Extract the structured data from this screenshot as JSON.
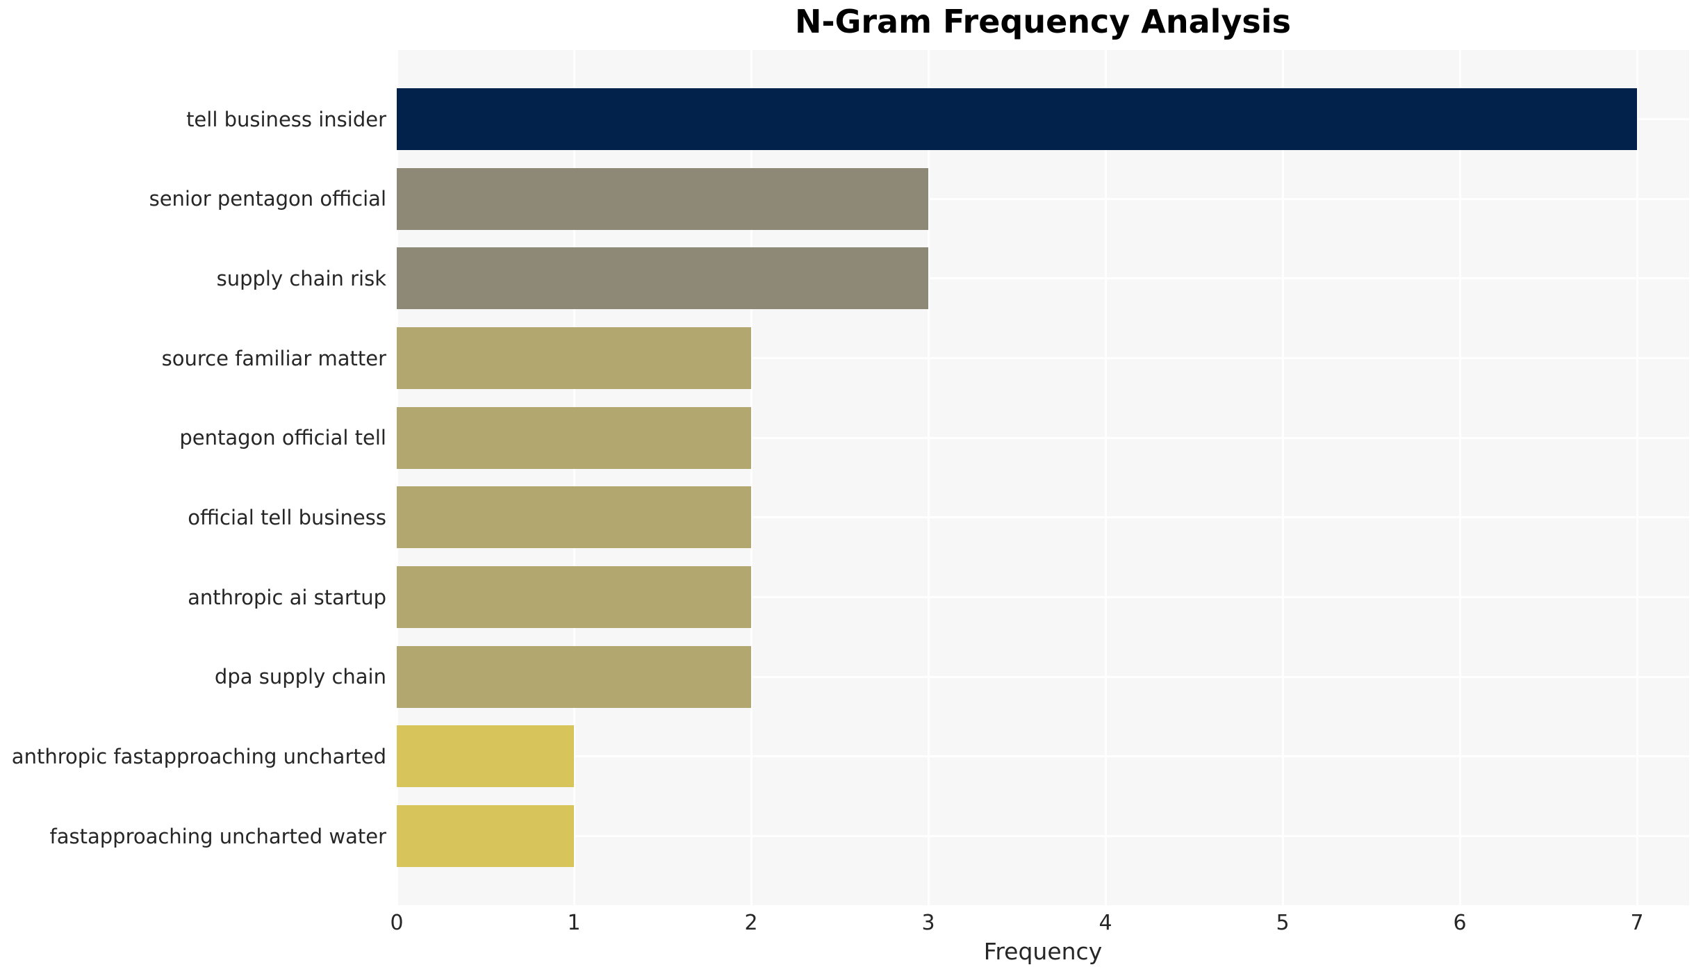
{
  "title": "N-Gram Frequency Analysis",
  "chart_data": {
    "type": "bar",
    "orientation": "horizontal",
    "title": "N-Gram Frequency Analysis",
    "xlabel": "Frequency",
    "ylabel": "",
    "xlim": [
      0,
      7.3
    ],
    "x_ticks": [
      0,
      1,
      2,
      3,
      4,
      5,
      6,
      7
    ],
    "grid": true,
    "legend": false,
    "categories": [
      "tell business insider",
      "senior pentagon official",
      "supply chain risk",
      "source familiar matter",
      "pentagon official tell",
      "official tell business",
      "anthropic ai startup",
      "dpa supply chain",
      "anthropic fastapproaching uncharted",
      "fastapproaching uncharted water"
    ],
    "values": [
      7,
      3,
      3,
      2,
      2,
      2,
      2,
      2,
      1,
      1
    ],
    "bar_colors": [
      "#02224c",
      "#8e8877",
      "#8e8877",
      "#b1a76f",
      "#b1a76f",
      "#b1a76f",
      "#b1a76f",
      "#b1a76f",
      "#d7c55b",
      "#d7c55b"
    ],
    "colors": {
      "plot_background": "#f7f7f7",
      "figure_background": "#ffffff",
      "gridline": "#ffffff",
      "tick_text": "#262626",
      "title_text": "#000000"
    }
  }
}
